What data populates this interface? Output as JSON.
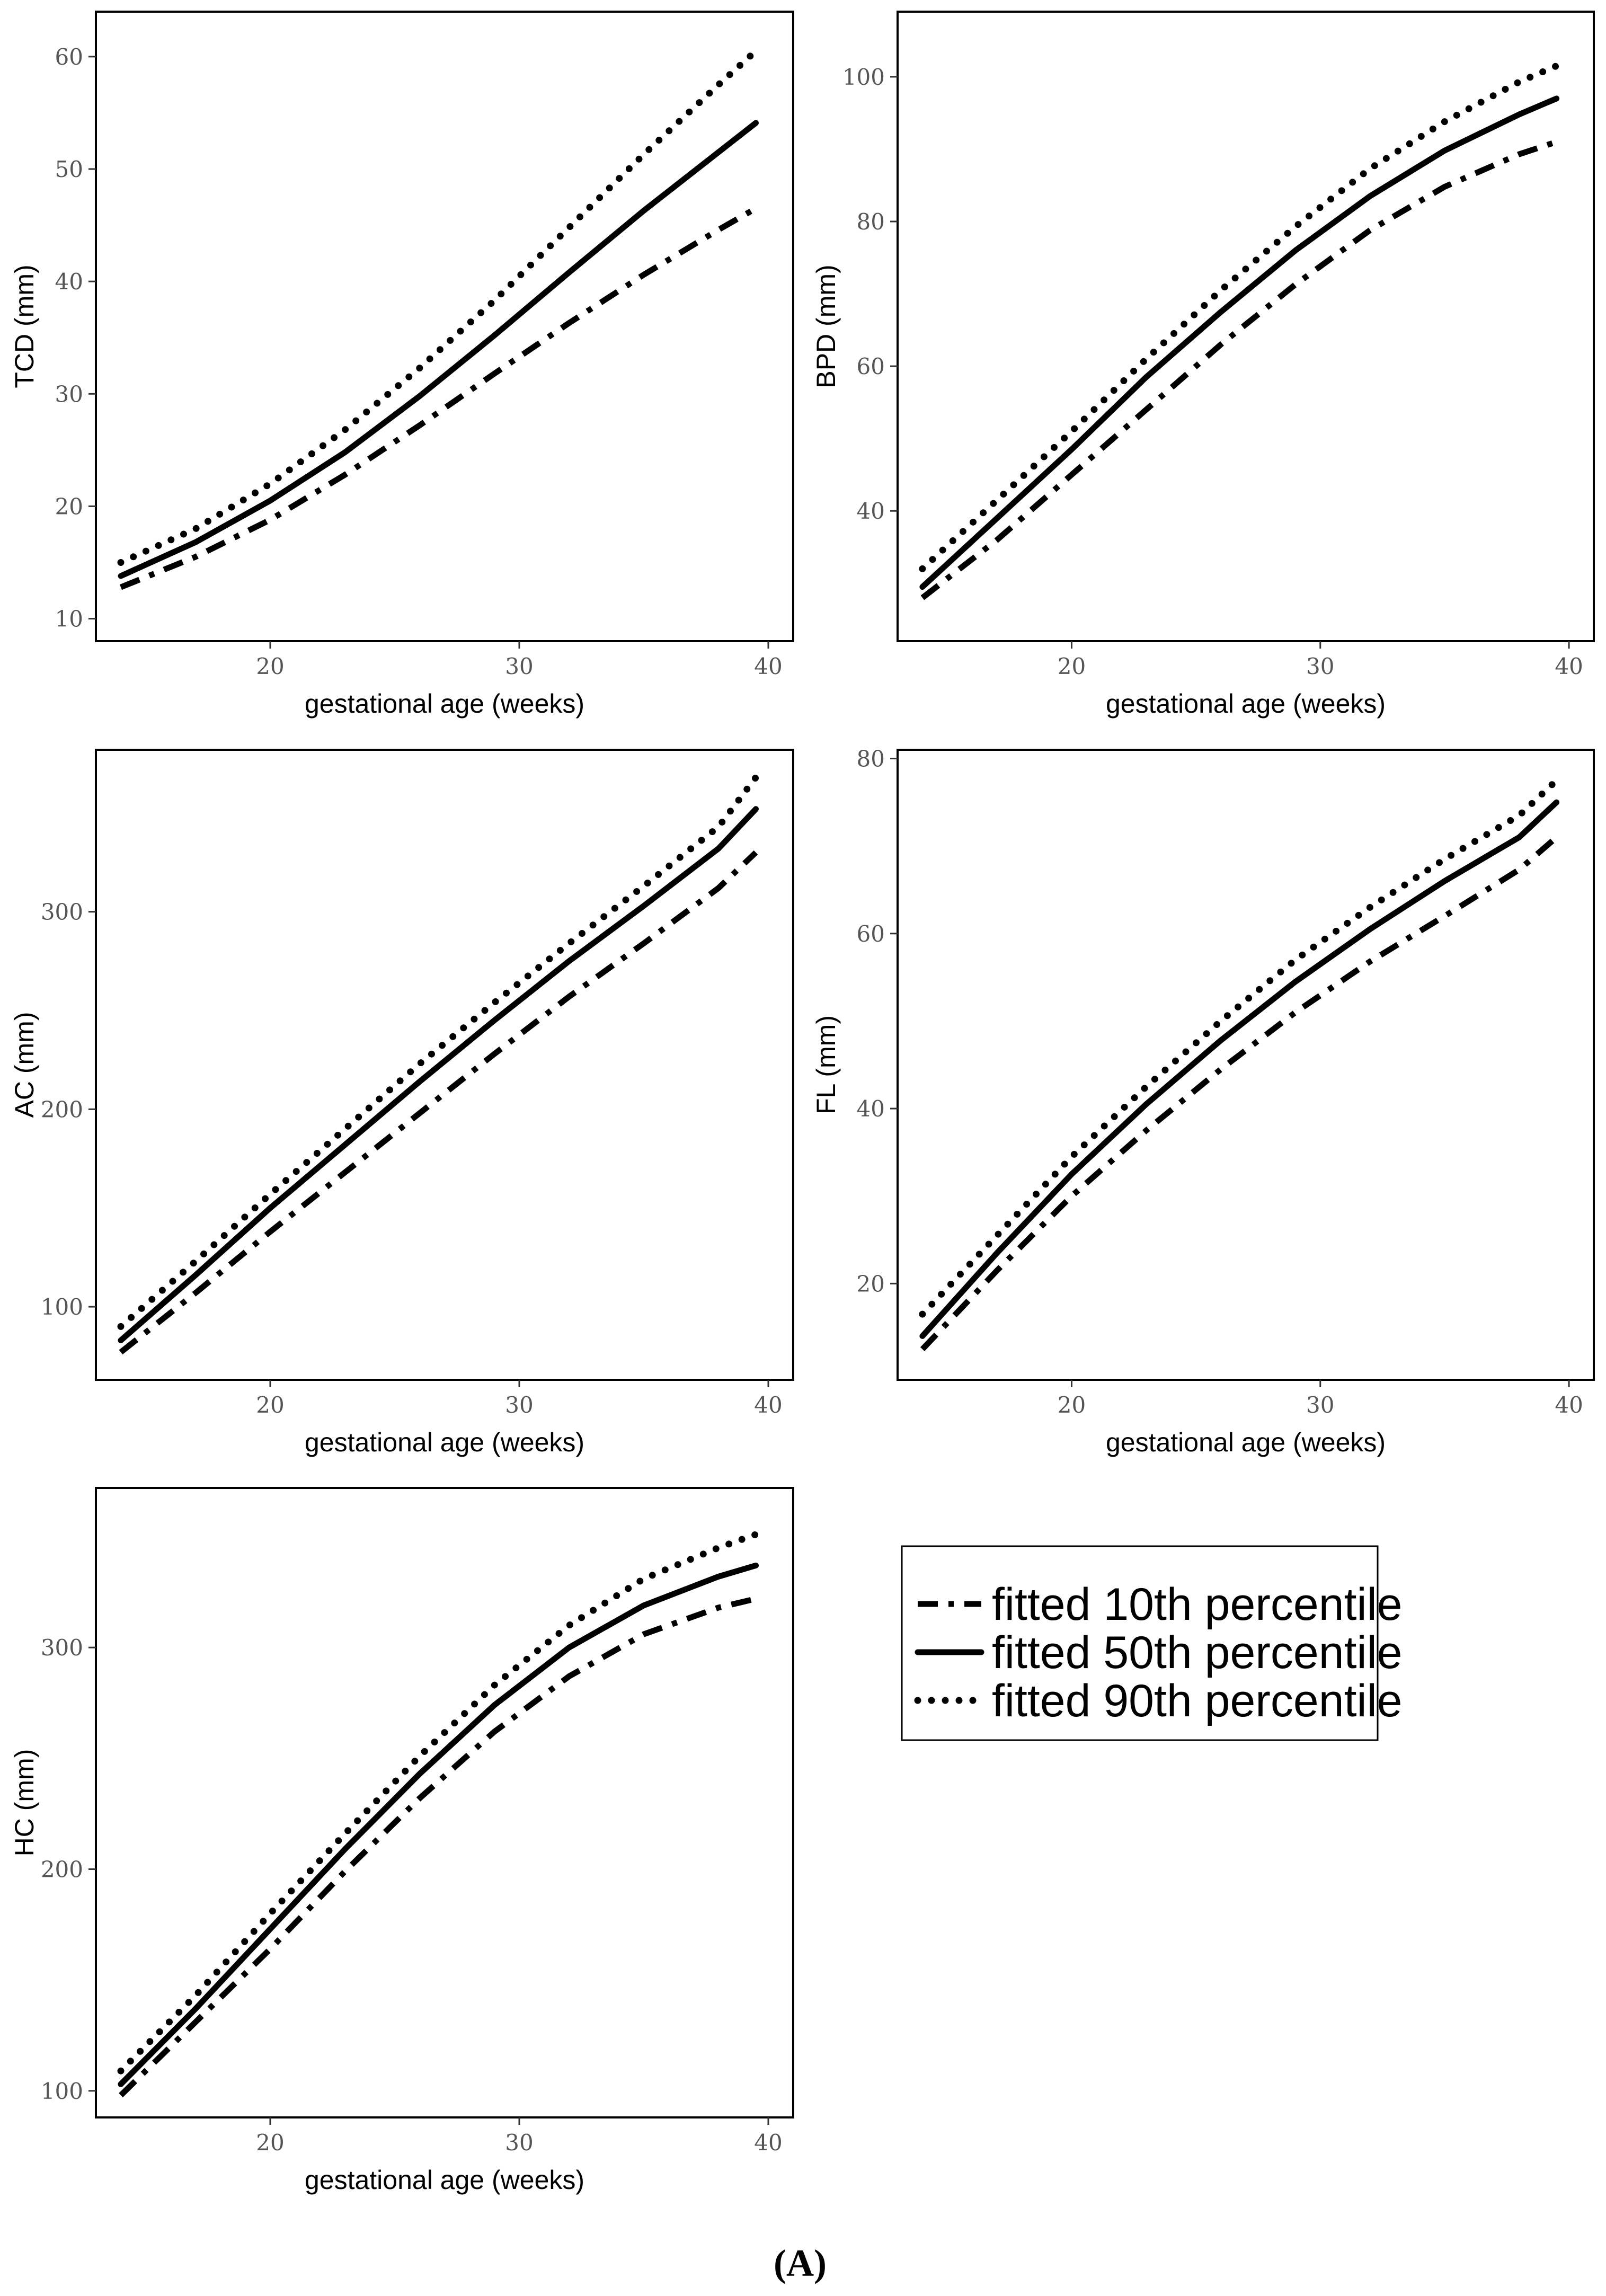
{
  "chart_data": [
    {
      "type": "line",
      "xlabel": "gestational age (weeks)",
      "ylabel": "TCD (mm)",
      "xticks": [
        20,
        30,
        40
      ],
      "yticks": [
        10,
        20,
        30,
        40,
        50,
        60
      ],
      "xlim": [
        13,
        41
      ],
      "ylim": [
        8,
        64
      ],
      "x": [
        14,
        17,
        20,
        23,
        26,
        29,
        32,
        35,
        38,
        39.5
      ],
      "series": [
        {
          "name": "fitted 10th percentile",
          "style": "dashdot",
          "values": [
            12.8,
            15.5,
            18.8,
            22.8,
            27.2,
            31.8,
            36.3,
            40.6,
            44.6,
            46.5
          ]
        },
        {
          "name": "fitted 50th percentile",
          "style": "solid",
          "values": [
            13.8,
            16.8,
            20.5,
            24.8,
            29.8,
            35.2,
            40.8,
            46.3,
            51.5,
            54.1
          ]
        },
        {
          "name": "fitted 90th percentile",
          "style": "dotted",
          "values": [
            15.0,
            18.0,
            22.0,
            26.8,
            32.3,
            38.3,
            44.8,
            51.3,
            57.5,
            60.5
          ]
        }
      ]
    },
    {
      "type": "line",
      "xlabel": "gestational age (weeks)",
      "ylabel": "BPD (mm)",
      "xticks": [
        20,
        30,
        40
      ],
      "yticks": [
        40,
        60,
        80,
        100
      ],
      "xlim": [
        13,
        41
      ],
      "ylim": [
        22,
        109
      ],
      "x": [
        14,
        17,
        20,
        23,
        26,
        29,
        32,
        35,
        38,
        39.5
      ],
      "series": [
        {
          "name": "fitted 10th percentile",
          "style": "dashdot",
          "values": [
            28,
            36,
            45,
            54,
            63,
            71.3,
            78.8,
            84.8,
            89.3,
            91
          ]
        },
        {
          "name": "fitted 50th percentile",
          "style": "solid",
          "values": [
            29.5,
            39,
            48.5,
            58.5,
            67.5,
            76,
            83.5,
            89.8,
            94.8,
            97
          ]
        },
        {
          "name": "fitted 90th percentile",
          "style": "dotted",
          "values": [
            32,
            41.5,
            51,
            61,
            70.5,
            79.3,
            87.3,
            93.8,
            99.3,
            101.5
          ]
        }
      ]
    },
    {
      "type": "line",
      "xlabel": "gestational age (weeks)",
      "ylabel": "AC (mm)",
      "xticks": [
        20,
        30,
        40
      ],
      "yticks": [
        100,
        200,
        300
      ],
      "xlim": [
        13,
        41
      ],
      "ylim": [
        63,
        382
      ],
      "x": [
        14,
        17,
        20,
        23,
        26,
        29,
        32,
        35,
        38,
        39.5
      ],
      "series": [
        {
          "name": "fitted 10th percentile",
          "style": "dashdot",
          "values": [
            77,
            107,
            138,
            168,
            198,
            228,
            257,
            284,
            312,
            330
          ]
        },
        {
          "name": "fitted 50th percentile",
          "style": "solid",
          "values": [
            83,
            116,
            150,
            182,
            214,
            245,
            275,
            303,
            332,
            352
          ]
        },
        {
          "name": "fitted 90th percentile",
          "style": "dotted",
          "values": [
            90,
            123,
            157,
            190,
            223,
            254,
            284,
            313,
            343,
            368
          ]
        }
      ]
    },
    {
      "type": "line",
      "xlabel": "gestational age (weeks)",
      "ylabel": "FL (mm)",
      "xticks": [
        20,
        30,
        40
      ],
      "yticks": [
        20,
        40,
        60,
        80
      ],
      "xlim": [
        13,
        41
      ],
      "ylim": [
        9,
        81
      ],
      "x": [
        14,
        17,
        20,
        23,
        26,
        29,
        32,
        35,
        38,
        39.5
      ],
      "series": [
        {
          "name": "fitted 10th percentile",
          "style": "dashdot",
          "values": [
            12.5,
            21.5,
            30,
            37.5,
            44.5,
            51,
            56.8,
            62,
            67.3,
            71
          ]
        },
        {
          "name": "fitted 50th percentile",
          "style": "solid",
          "values": [
            14,
            23.5,
            32.5,
            40.5,
            47.8,
            54.5,
            60.5,
            66,
            71,
            75
          ]
        },
        {
          "name": "fitted 90th percentile",
          "style": "dotted",
          "values": [
            16.5,
            25.5,
            34.5,
            42.5,
            50,
            57,
            63,
            68.5,
            73.5,
            77.5
          ]
        }
      ]
    },
    {
      "type": "line",
      "xlabel": "gestational age (weeks)",
      "ylabel": "HC (mm)",
      "xticks": [
        20,
        30,
        40
      ],
      "yticks": [
        100,
        200,
        300
      ],
      "xlim": [
        13,
        41
      ],
      "ylim": [
        88,
        372
      ],
      "x": [
        14,
        17,
        20,
        23,
        26,
        29,
        32,
        35,
        38,
        39.5
      ],
      "series": [
        {
          "name": "fitted 10th percentile",
          "style": "dashdot",
          "values": [
            98,
            131,
            164,
            199,
            232,
            262,
            287,
            306,
            318,
            322
          ]
        },
        {
          "name": "fitted 50th percentile",
          "style": "solid",
          "values": [
            103,
            137,
            173,
            209,
            243,
            274,
            300,
            319,
            332,
            337
          ]
        },
        {
          "name": "fitted 90th percentile",
          "style": "dotted",
          "values": [
            109,
            143,
            180,
            216,
            251,
            283,
            310,
            331,
            345,
            351
          ]
        }
      ]
    }
  ],
  "legend": {
    "entries": [
      {
        "label": "fitted 10th percentile",
        "style": "dashdot"
      },
      {
        "label": "fitted 50th percentile",
        "style": "solid"
      },
      {
        "label": "fitted 90th percentile",
        "style": "dotted"
      }
    ]
  },
  "caption": "(A)"
}
